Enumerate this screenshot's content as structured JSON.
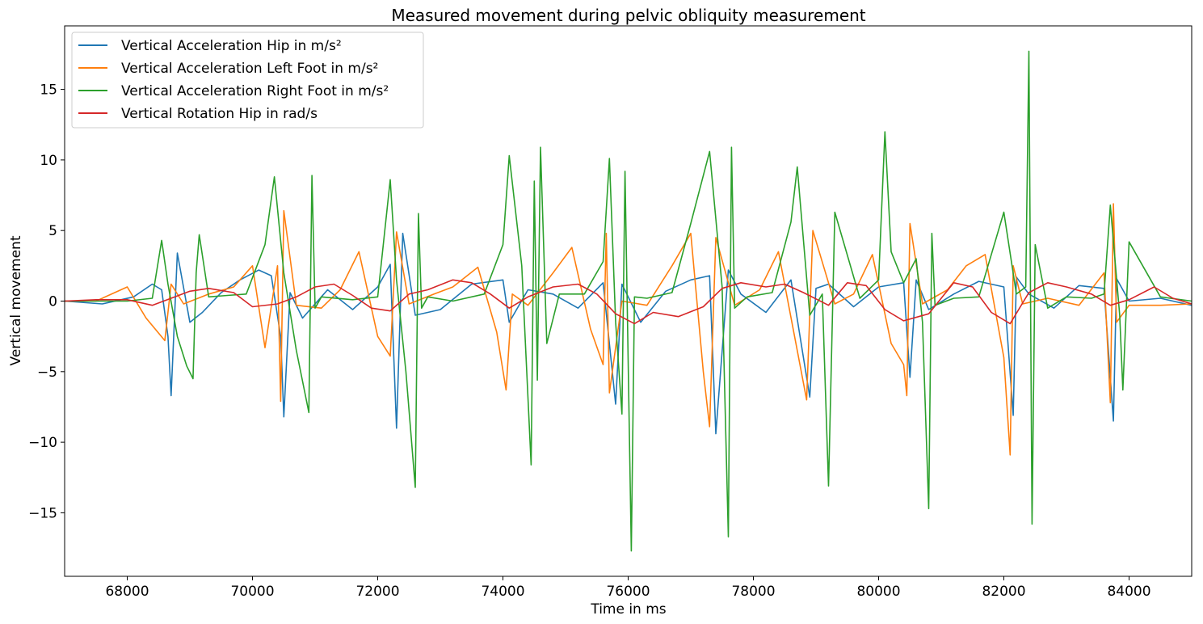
{
  "chart_data": {
    "type": "line",
    "title": "Measured movement during pelvic obliquity measurement",
    "xlabel": "Time in ms",
    "ylabel": "Vertical movement",
    "xlim": [
      67000,
      85000
    ],
    "ylim": [
      -19.5,
      19.5
    ],
    "xticks": [
      68000,
      70000,
      72000,
      74000,
      76000,
      78000,
      80000,
      82000,
      84000
    ],
    "xtick_labels": [
      "68000",
      "70000",
      "72000",
      "74000",
      "76000",
      "78000",
      "80000",
      "82000",
      "84000"
    ],
    "yticks": [
      -15,
      -10,
      -5,
      0,
      5,
      10,
      15
    ],
    "ytick_labels": [
      "−15",
      "−10",
      "−5",
      "0",
      "5",
      "10",
      "15"
    ],
    "legend_position": "upper-left",
    "grid": false,
    "series": [
      {
        "name": "Vertical Acceleration Hip in m/s²",
        "color": "#1f77b4",
        "x": [
          67000,
          67600,
          68100,
          68400,
          68550,
          68650,
          68700,
          68800,
          69000,
          69200,
          69500,
          69800,
          70100,
          70300,
          70450,
          70500,
          70600,
          70800,
          71200,
          71600,
          72000,
          72200,
          72300,
          72400,
          72600,
          73000,
          73500,
          74000,
          74100,
          74400,
          74800,
          75200,
          75600,
          75800,
          75900,
          76200,
          76600,
          77000,
          77300,
          77400,
          77600,
          77800,
          78200,
          78600,
          78900,
          79000,
          79200,
          79600,
          80000,
          80400,
          80500,
          80600,
          80800,
          81200,
          81600,
          82000,
          82150,
          82200,
          82400,
          82800,
          83200,
          83600,
          83750,
          83800,
          84000,
          84500,
          85000
        ],
        "values": [
          0,
          -0.2,
          0.3,
          1.2,
          0.8,
          -2.5,
          -6.7,
          3.4,
          -1.5,
          -0.8,
          0.6,
          1.5,
          2.2,
          1.8,
          -2.5,
          -8.2,
          0.6,
          -1.2,
          0.8,
          -0.6,
          1.0,
          2.6,
          -9.0,
          4.8,
          -1.0,
          -0.6,
          1.2,
          1.5,
          -1.5,
          0.8,
          0.5,
          -0.5,
          1.3,
          -7.3,
          1.2,
          -1.5,
          0.7,
          1.5,
          1.8,
          -9.4,
          2.2,
          0.5,
          -0.8,
          1.5,
          -6.8,
          0.9,
          1.2,
          -0.4,
          1.0,
          1.3,
          -5.4,
          1.5,
          -0.6,
          0.5,
          1.4,
          1.0,
          -8.1,
          1.7,
          0.5,
          -0.5,
          1.1,
          0.9,
          -8.5,
          1.6,
          0.0,
          0.2,
          -0.3
        ]
      },
      {
        "name": "Vertical Acceleration Left Foot in m/s²",
        "color": "#ff7f0e",
        "x": [
          67000,
          67500,
          67800,
          68000,
          68300,
          68600,
          68700,
          68900,
          69300,
          69700,
          70000,
          70200,
          70400,
          70450,
          70500,
          70700,
          71100,
          71400,
          71700,
          72000,
          72200,
          72300,
          72500,
          72900,
          73200,
          73600,
          73900,
          74050,
          74150,
          74400,
          74800,
          75100,
          75400,
          75600,
          75650,
          75700,
          75900,
          76300,
          76700,
          77000,
          77200,
          77300,
          77400,
          77700,
          78100,
          78400,
          78700,
          78850,
          78950,
          79300,
          79600,
          79900,
          80200,
          80400,
          80450,
          80500,
          80700,
          81100,
          81400,
          81700,
          82000,
          82100,
          82150,
          82300,
          82700,
          83200,
          83600,
          83700,
          83750,
          83800,
          84000,
          84500,
          85000
        ],
        "values": [
          0,
          0,
          0.6,
          1.0,
          -1.2,
          -2.8,
          1.2,
          -0.2,
          0.5,
          1.0,
          2.5,
          -3.3,
          2.5,
          -7.1,
          6.4,
          -0.3,
          -0.5,
          0.8,
          3.5,
          -2.5,
          -3.9,
          4.9,
          -0.2,
          0.5,
          1.0,
          2.4,
          -2.2,
          -6.3,
          0.5,
          -0.3,
          2.0,
          3.8,
          -2.0,
          -4.5,
          4.8,
          -6.5,
          0,
          -0.3,
          2.5,
          4.8,
          -5.0,
          -8.9,
          4.5,
          -0.3,
          0.8,
          3.5,
          -3.5,
          -7.0,
          5.0,
          -0.2,
          0.5,
          3.3,
          -3.0,
          -4.5,
          -6.7,
          5.5,
          -0.2,
          0.8,
          2.5,
          3.3,
          -4.0,
          -10.9,
          2.5,
          -0.2,
          0.2,
          -0.3,
          2.0,
          -7.2,
          6.9,
          -1.5,
          -0.3,
          -0.3,
          -0.2
        ]
      },
      {
        "name": "Vertical Acceleration Right Foot in m/s²",
        "color": "#2ca02c",
        "x": [
          67000,
          68000,
          68400,
          68550,
          68650,
          68800,
          68950,
          69050,
          69100,
          69150,
          69300,
          69600,
          69900,
          70200,
          70350,
          70500,
          70700,
          70900,
          70950,
          71000,
          71100,
          71600,
          72000,
          72200,
          72300,
          72450,
          72600,
          72650,
          72700,
          72800,
          73200,
          73700,
          74000,
          74100,
          74300,
          74450,
          74500,
          74550,
          74600,
          74700,
          74900,
          75300,
          75600,
          75700,
          75800,
          75900,
          75950,
          76050,
          76100,
          76300,
          76700,
          77000,
          77300,
          77500,
          77600,
          77650,
          77700,
          77900,
          78300,
          78600,
          78700,
          78900,
          79100,
          79200,
          79300,
          79700,
          80000,
          80100,
          80200,
          80400,
          80600,
          80700,
          80800,
          80850,
          80900,
          81200,
          81600,
          82000,
          82200,
          82350,
          82400,
          82450,
          82500,
          82700,
          83000,
          83400,
          83600,
          83700,
          83850,
          83900,
          84000,
          84500,
          85000
        ],
        "values": [
          0,
          0,
          0.2,
          4.3,
          1.2,
          -2.5,
          -4.6,
          -5.5,
          2.0,
          4.7,
          0.3,
          0.4,
          0.5,
          4.0,
          8.8,
          2.0,
          -3.5,
          -7.9,
          8.9,
          -0.5,
          0.3,
          0.1,
          0.3,
          8.6,
          1.5,
          -5.0,
          -13.2,
          6.2,
          -0.5,
          0.3,
          0,
          0.5,
          4.0,
          10.3,
          2.5,
          -11.6,
          8.5,
          -5.6,
          10.9,
          -3.0,
          0.5,
          0.5,
          2.8,
          10.1,
          -1.5,
          -8.0,
          9.2,
          -17.7,
          0.3,
          0.2,
          0.6,
          5.5,
          10.6,
          1.0,
          -16.7,
          10.9,
          -0.5,
          0.3,
          0.6,
          5.6,
          9.5,
          -1.0,
          0.5,
          -13.1,
          6.3,
          0.2,
          1.5,
          12.0,
          3.5,
          1.3,
          3.0,
          -1.5,
          -14.7,
          4.8,
          -0.3,
          0.2,
          0.3,
          6.3,
          0.5,
          1.0,
          17.7,
          -15.8,
          4.0,
          -0.5,
          0.3,
          0.2,
          0.5,
          6.8,
          -1.0,
          -6.3,
          4.2,
          0.3,
          0
        ]
      },
      {
        "name": "Vertical Rotation Hip in rad/s",
        "color": "#d62728",
        "x": [
          67000,
          67500,
          68000,
          68400,
          68700,
          69000,
          69300,
          69700,
          70000,
          70400,
          70700,
          71000,
          71300,
          71600,
          71900,
          72200,
          72500,
          72800,
          73200,
          73500,
          73800,
          74100,
          74400,
          74800,
          75200,
          75500,
          75800,
          76100,
          76400,
          76800,
          77200,
          77500,
          77800,
          78200,
          78500,
          78800,
          79200,
          79500,
          79800,
          80100,
          80400,
          80800,
          81200,
          81500,
          81800,
          82100,
          82400,
          82700,
          83000,
          83400,
          83700,
          84000,
          84400,
          84700,
          85000
        ],
        "values": [
          0,
          0.1,
          0.1,
          -0.3,
          0.2,
          0.7,
          0.9,
          0.6,
          -0.4,
          -0.2,
          0.3,
          1.0,
          1.2,
          0.4,
          -0.5,
          -0.7,
          0.5,
          0.8,
          1.5,
          1.3,
          0.5,
          -0.5,
          0.3,
          1.0,
          1.2,
          0.5,
          -0.9,
          -1.6,
          -0.8,
          -1.1,
          -0.4,
          0.9,
          1.3,
          1.0,
          1.2,
          0.6,
          -0.3,
          1.3,
          1.1,
          -0.6,
          -1.4,
          -0.9,
          1.3,
          1.0,
          -0.8,
          -1.6,
          0.6,
          1.3,
          1.0,
          0.5,
          -0.3,
          0.1,
          1.0,
          0.2,
          -0.2
        ]
      }
    ]
  }
}
